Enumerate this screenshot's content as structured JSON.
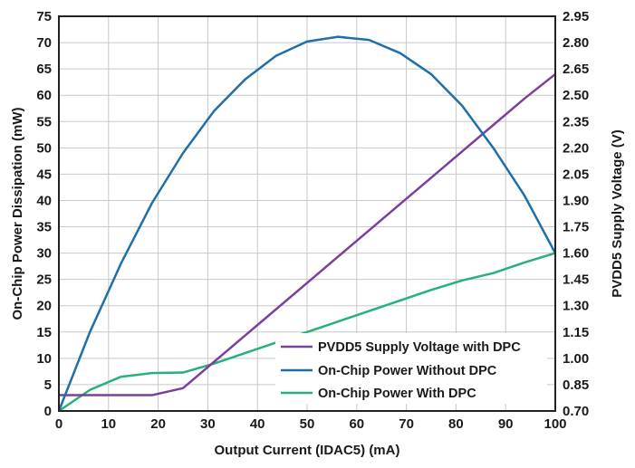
{
  "chart_data": {
    "type": "line",
    "title": "",
    "xlabel": "Output Current (IDAC5) (mA)",
    "ylabel_left": "On-Chip Power Dissipation (mW)",
    "ylabel_right": "PVDD5 Supply Voltage (V)",
    "xlim": [
      0,
      100
    ],
    "ylim_left": [
      0,
      75
    ],
    "ylim_right": [
      0.7,
      2.95
    ],
    "x_ticks": [
      "0",
      "10",
      "20",
      "30",
      "40",
      "50",
      "60",
      "70",
      "80",
      "90",
      "100"
    ],
    "y_left_ticks": [
      "0",
      "5",
      "10",
      "15",
      "20",
      "25",
      "30",
      "35",
      "40",
      "45",
      "50",
      "55",
      "60",
      "65",
      "70",
      "75"
    ],
    "y_right_ticks": [
      "0.70",
      "0.85",
      "1.00",
      "1.15",
      "1.30",
      "1.45",
      "1.60",
      "1.75",
      "1.90",
      "2.05",
      "2.20",
      "2.35",
      "2.50",
      "2.65",
      "2.80",
      "2.95"
    ],
    "grid": true,
    "legend_position": "bottom-right",
    "series": [
      {
        "name": "PVDD5 Supply Voltage with DPC",
        "axis": "right",
        "color": "#7b3f9e",
        "x": [
          0,
          6.25,
          12.5,
          18.75,
          25,
          31.25,
          37.5,
          43.75,
          50,
          56.25,
          62.5,
          68.75,
          75,
          81.25,
          87.5,
          93.75,
          100
        ],
        "y": [
          0.79,
          0.79,
          0.79,
          0.79,
          0.83,
          0.98,
          1.13,
          1.28,
          1.43,
          1.58,
          1.73,
          1.88,
          2.03,
          2.18,
          2.33,
          2.48,
          2.62
        ]
      },
      {
        "name": "On-Chip Power Without DPC",
        "axis": "left",
        "color": "#1f6fa8",
        "x": [
          0,
          6.25,
          12.5,
          18.75,
          25,
          31.25,
          37.5,
          43.75,
          50,
          56.25,
          62.5,
          68.75,
          75,
          81.25,
          87.5,
          93.75,
          100
        ],
        "y": [
          0,
          15,
          28,
          39.5,
          49,
          57,
          63,
          67.5,
          70.2,
          71.1,
          70.5,
          68,
          64,
          58,
          50,
          41,
          30
        ]
      },
      {
        "name": "On-Chip Power With DPC",
        "axis": "left",
        "color": "#27b07a",
        "x": [
          0,
          6.25,
          12.5,
          18.75,
          25,
          31.25,
          37.5,
          43.75,
          50,
          56.25,
          62.5,
          68.75,
          75,
          81.25,
          87.5,
          93.75,
          100
        ],
        "y": [
          0,
          4,
          6.5,
          7.2,
          7.3,
          9,
          11,
          13,
          15,
          17,
          19,
          21,
          23,
          24.8,
          26.2,
          28.2,
          30
        ]
      }
    ]
  }
}
